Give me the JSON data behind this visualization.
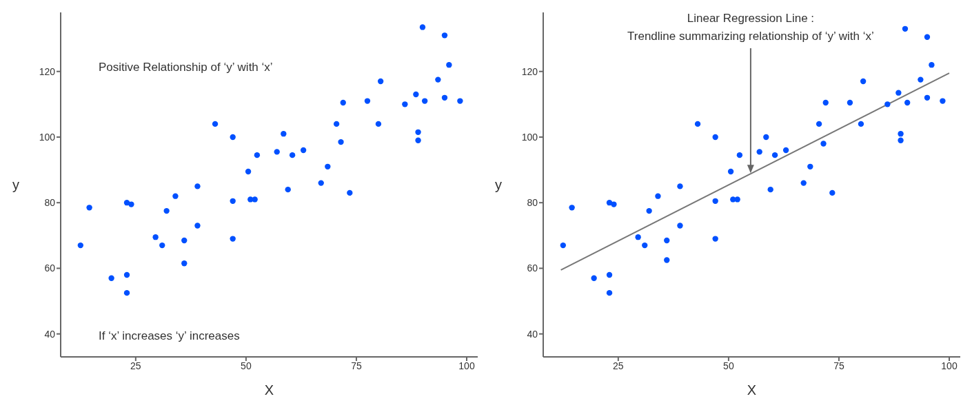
{
  "chart_data": [
    {
      "type": "scatter",
      "xlabel": "X",
      "ylabel": "y",
      "xlim": [
        8,
        102.5
      ],
      "ylim": [
        33,
        138
      ],
      "xticks": [
        25,
        50,
        75,
        100
      ],
      "yticks": [
        40,
        60,
        80,
        100,
        120
      ],
      "marker": "circle",
      "annotations": [
        "Positive Relationship of ‘y’ with ‘x’",
        "If ‘x’ increases ‘y’ increases"
      ],
      "x": [
        12.5,
        14.5,
        19.5,
        23,
        23,
        23,
        24,
        29.5,
        31,
        32,
        34,
        36,
        36,
        39,
        39,
        43,
        47,
        47,
        47,
        50.5,
        51,
        52,
        52.5,
        57,
        58.5,
        59.5,
        60.5,
        63,
        67,
        68.5,
        70.5,
        71.5,
        72,
        73.5,
        77.5,
        80,
        80.5,
        86,
        88.5,
        89,
        89,
        90,
        90.5,
        93.5,
        95,
        95,
        96,
        98.5
      ],
      "series": [
        {
          "color": "#0050ff",
          "values": [
            67,
            78.5,
            57,
            52.5,
            58,
            80,
            79.5,
            69.5,
            67,
            77.5,
            82,
            68.5,
            61.5,
            73,
            85,
            104,
            100,
            80.5,
            69,
            89.5,
            81,
            81,
            94.5,
            95.5,
            101,
            84,
            94.5,
            96,
            86,
            91,
            104,
            98.5,
            110.5,
            83,
            111,
            104,
            117,
            110,
            113,
            101.5,
            99,
            133.5,
            111,
            117.5,
            131,
            112,
            122,
            111
          ]
        }
      ]
    },
    {
      "type": "scatter",
      "xlabel": "X",
      "ylabel": "y",
      "xlim": [
        8,
        102.5
      ],
      "ylim": [
        33,
        138
      ],
      "xticks": [
        25,
        50,
        75,
        100
      ],
      "yticks": [
        40,
        60,
        80,
        100,
        120
      ],
      "marker": "circle",
      "annotations": [
        "Linear Regression Line :",
        {
          "text": "Trendline summarizing relationship of ‘y’ with ‘x’",
          "x": 55,
          "y": 89
        }
      ],
      "x": [
        12.5,
        14.5,
        19.5,
        23,
        23,
        23,
        24,
        29.5,
        31,
        32,
        34,
        36,
        36,
        39,
        39,
        43,
        47,
        47,
        47,
        50.5,
        51,
        52,
        52.5,
        57,
        58.5,
        59.5,
        60.5,
        63,
        67,
        68.5,
        70.5,
        71.5,
        72,
        73.5,
        77.5,
        80,
        80.5,
        86,
        88.5,
        89,
        89,
        90,
        90.5,
        93.5,
        95,
        95,
        96,
        98.5
      ],
      "series": [
        {
          "color": "#0050ff",
          "values": [
            67,
            78.5,
            57,
            52.5,
            58,
            80,
            79.5,
            69.5,
            67,
            77.5,
            82,
            68.5,
            62.5,
            73,
            85,
            104,
            100,
            80.5,
            69,
            89.5,
            81,
            81,
            94.5,
            95.5,
            100,
            84,
            94.5,
            96,
            86,
            91,
            104,
            98,
            110.5,
            83,
            110.5,
            104,
            117,
            110,
            113.5,
            101,
            99,
            133,
            110.5,
            117.5,
            130.5,
            112,
            122,
            111
          ]
        },
        {
          "type": "line",
          "marker": "none",
          "color": "#777777",
          "x": [
            12,
            100
          ],
          "values": [
            59.5,
            119.5
          ]
        }
      ]
    }
  ]
}
